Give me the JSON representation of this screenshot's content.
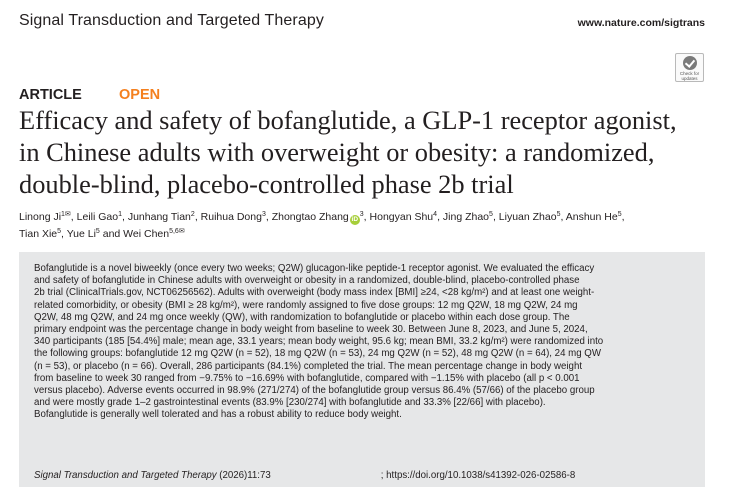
{
  "header": {
    "journal_name": "Signal Transduction and Targeted Therapy",
    "site_url": "www.nature.com/sigtrans",
    "check_badge_label": "Check for updates"
  },
  "article": {
    "type_label": "ARTICLE",
    "access_label": "OPEN",
    "title_lines": [
      "Efficacy and safety of bofanglutide, a GLP-1 receptor agonist,",
      "in Chinese adults with overweight or obesity: a randomized,",
      "double-blind, placebo-controlled phase 2b trial"
    ],
    "authors": [
      {
        "name": "Linong Ji",
        "aff": "1✉"
      },
      {
        "name": "Leili Gao",
        "aff": "1"
      },
      {
        "name": "Junhang Tian",
        "aff": "2"
      },
      {
        "name": "Ruihua Dong",
        "aff": "3"
      },
      {
        "name": "Zhongtao Zhang",
        "aff": "3",
        "orcid": "iD"
      },
      {
        "name": "Hongyan Shu",
        "aff": "4"
      },
      {
        "name": "Jing Zhao",
        "aff": "5"
      },
      {
        "name": "Liyuan Zhao",
        "aff": "5"
      },
      {
        "name": "Anshun He",
        "aff": "5"
      },
      {
        "name": "Tian Xie",
        "aff": "5"
      },
      {
        "name": "Yue Li",
        "aff": "5"
      },
      {
        "name": "Wei Chen",
        "aff": "5,6✉"
      }
    ],
    "author_separator": ", ",
    "author_last_separator": " and "
  },
  "abstract": {
    "lines": [
      "Bofanglutide is a novel biweekly (once every two weeks; Q2W) glucagon-like peptide-1 receptor agonist. We evaluated the efficacy",
      "and safety of bofanglutide in Chinese adults with overweight or obesity in a randomized, double-blind, placebo-controlled phase",
      "2b trial (ClinicalTrials.gov, NCT06256562). Adults with overweight (body mass index [BMI] ≥24, <28 kg/m²) and at least one weight-",
      "related comorbidity, or obesity (BMI ≥ 28 kg/m²), were randomly assigned to five dose groups: 12 mg Q2W, 18 mg Q2W, 24 mg",
      "Q2W, 48 mg Q2W, and 24 mg once weekly (QW), with randomization to bofanglutide or placebo within each dose group. The",
      "primary endpoint was the percentage change in body weight from baseline to week 30. Between June 8, 2023, and June 5, 2024,",
      "340 participants (185 [54.4%] male; mean age, 33.1 years; mean body weight, 95.6 kg; mean BMI, 33.2 kg/m²) were randomized into",
      "the following groups: bofanglutide 12 mg Q2W (n = 52), 18 mg Q2W (n = 53), 24 mg Q2W (n = 52), 48 mg Q2W (n = 64), 24 mg QW",
      "(n = 53), or placebo (n = 66). Overall, 286 participants (84.1%) completed the trial. The mean percentage change in body weight",
      "from baseline to week 30 ranged from −9.75% to −16.69% with bofanglutide, compared with −1.15% with placebo (all p < 0.001",
      "versus placebo). Adverse events occurred in 98.9% (271/274) of the bofanglutide group versus 86.4% (57/66) of the placebo group",
      "and were mostly grade 1–2 gastrointestinal events (83.9% [230/274] with bofanglutide and 33.3% [22/66] with placebo).",
      "Bofanglutide is generally well tolerated and has a robust ability to reduce body weight."
    ]
  },
  "citation": {
    "journal": "Signal Transduction and Targeted Therapy",
    "volume": " (2026)11:73",
    "separator": "; ",
    "doi": "https://doi.org/10.1038/s41392-026-02586-8"
  },
  "colors": {
    "accent_open": "#f4801f",
    "abstract_background": "#e6e7e8",
    "orcid": "#a6ce39"
  }
}
